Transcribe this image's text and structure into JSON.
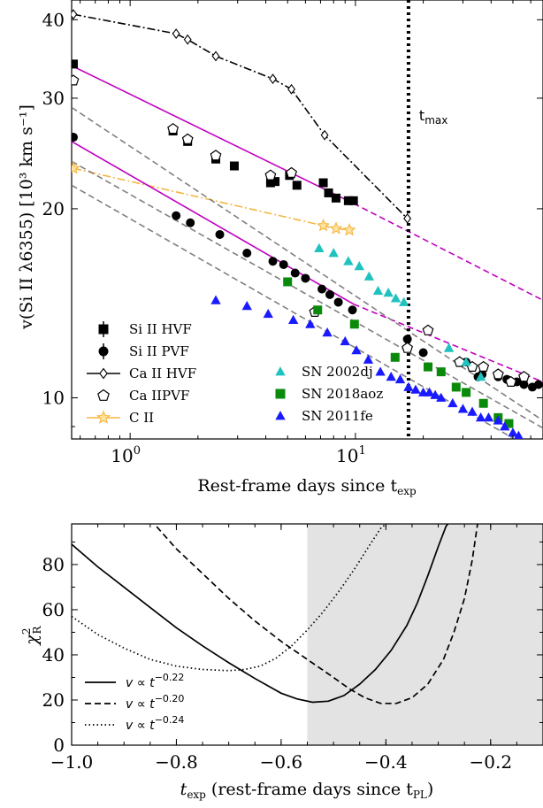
{
  "chart_data": [
    {
      "type": "scatter",
      "xscale": "log",
      "yscale": "log",
      "xlim": [
        0.55,
        68
      ],
      "ylim": [
        8.6,
        43
      ],
      "x_ticks": [
        {
          "value": 1,
          "label": "10",
          "sup": "0"
        },
        {
          "value": 10,
          "label": "10",
          "sup": "1"
        }
      ],
      "y_ticks": [
        {
          "value": 10,
          "label": "10"
        },
        {
          "value": 20,
          "label": "20"
        },
        {
          "value": 30,
          "label": "30"
        },
        {
          "value": 40,
          "label": "40"
        }
      ],
      "xlabel": "Rest-frame days since t",
      "xlabel_sub": "exp",
      "ylabel": "v(Si II λ6355) [10³ km s⁻¹]",
      "tmax": {
        "x": 17.2,
        "label": "t",
        "label_sub": "max"
      },
      "legend_placement": "lower-left",
      "series": [
        {
          "name": "Si II HVF",
          "marker": "square",
          "color": "#000000",
          "points": [
            [
              0.56,
              34.0
            ],
            [
              1.55,
              26.6
            ],
            [
              1.8,
              25.6
            ],
            [
              2.4,
              24.0
            ],
            [
              2.9,
              23.4
            ],
            [
              4.2,
              22.0
            ],
            [
              4.4,
              22.1
            ],
            [
              5.1,
              22.6
            ],
            [
              5.5,
              21.8
            ],
            [
              7.2,
              22.0
            ],
            [
              7.6,
              21.2
            ],
            [
              8.2,
              20.8
            ],
            [
              9.3,
              20.6
            ],
            [
              9.8,
              20.6
            ]
          ]
        },
        {
          "name": "Si II PVF",
          "marker": "circle",
          "color": "#000000",
          "points": [
            [
              0.56,
              26.0
            ],
            [
              1.6,
              19.5
            ],
            [
              1.85,
              19.0
            ],
            [
              2.5,
              18.2
            ],
            [
              3.3,
              17.0
            ],
            [
              4.3,
              16.5
            ],
            [
              4.8,
              16.3
            ],
            [
              5.4,
              15.8
            ],
            [
              6.0,
              15.5
            ],
            [
              7.1,
              14.9
            ],
            [
              7.7,
              14.6
            ],
            [
              8.4,
              14.2
            ],
            [
              9.7,
              13.8
            ],
            [
              17.0,
              12.4
            ],
            [
              20.0,
              11.8
            ],
            [
              31.0,
              11.4
            ],
            [
              35.0,
              10.8
            ],
            [
              36.5,
              10.9
            ],
            [
              43.0,
              10.8
            ],
            [
              47.0,
              10.7
            ],
            [
              52.0,
              10.6
            ],
            [
              56.0,
              10.5
            ],
            [
              61.0,
              10.4
            ],
            [
              65.0,
              10.5
            ]
          ]
        },
        {
          "name": "Ca II HVF",
          "marker": "diamond-open",
          "color": "#000000",
          "points": [
            [
              0.56,
              40.8
            ],
            [
              1.6,
              38.0
            ],
            [
              1.8,
              37.2
            ],
            [
              2.4,
              35.0
            ],
            [
              4.3,
              32.2
            ],
            [
              5.2,
              31.0
            ],
            [
              7.3,
              26.2
            ],
            [
              17.0,
              19.3
            ]
          ]
        },
        {
          "name": "Ca IIPVF",
          "marker": "pentagon-open",
          "color": "#000000",
          "points": [
            [
              0.56,
              32.0
            ],
            [
              1.55,
              26.8
            ],
            [
              1.8,
              25.8
            ],
            [
              2.4,
              24.3
            ],
            [
              4.2,
              22.6
            ],
            [
              5.2,
              22.8
            ],
            [
              6.6,
              13.7
            ],
            [
              17.0,
              12.0
            ],
            [
              21.0,
              12.8
            ],
            [
              29.0,
              11.4
            ],
            [
              33.0,
              11.2
            ],
            [
              37.0,
              11.2
            ],
            [
              43.0,
              10.9
            ],
            [
              49.0,
              10.6
            ],
            [
              56.0,
              10.8
            ]
          ]
        },
        {
          "name": "C II",
          "marker": "star",
          "color": "#f5b640",
          "points": [
            [
              0.56,
              23.2
            ],
            [
              7.2,
              18.8
            ],
            [
              8.2,
              18.6
            ],
            [
              9.4,
              18.5
            ]
          ]
        },
        {
          "name": "SN 2002dj",
          "marker": "triangle",
          "color": "#20c2bf",
          "points": [
            [
              6.9,
              17.3
            ],
            [
              8.0,
              17.0
            ],
            [
              9.3,
              16.5
            ],
            [
              10.4,
              16.2
            ],
            [
              11.5,
              15.6
            ],
            [
              12.6,
              14.8
            ],
            [
              14.0,
              14.7
            ],
            [
              15.1,
              14.4
            ],
            [
              16.4,
              14.2
            ],
            [
              26.0,
              12.0
            ],
            [
              31.0,
              11.4
            ],
            [
              36.0,
              10.8
            ]
          ]
        },
        {
          "name": "SN 2018aoz",
          "marker": "square",
          "color": "#0a8a0a",
          "points": [
            [
              5.0,
              15.3
            ],
            [
              6.8,
              13.8
            ],
            [
              9.9,
              13.1
            ],
            [
              15.0,
              11.6
            ],
            [
              21.0,
              11.2
            ],
            [
              24.0,
              11.0
            ],
            [
              28.0,
              10.4
            ],
            [
              31.0,
              10.2
            ],
            [
              37.0,
              9.8
            ],
            [
              43.0,
              9.3
            ],
            [
              48.0,
              9.1
            ]
          ]
        },
        {
          "name": "SN 2011fe",
          "marker": "triangle",
          "color": "#1a1aff",
          "points": [
            [
              2.4,
              14.3
            ],
            [
              3.3,
              14.0
            ],
            [
              4.1,
              13.6
            ],
            [
              5.3,
              13.3
            ],
            [
              6.3,
              13.1
            ],
            [
              7.5,
              12.7
            ],
            [
              9.0,
              12.3
            ],
            [
              10.1,
              11.9
            ],
            [
              11.4,
              11.5
            ],
            [
              12.9,
              11.0
            ],
            [
              14.4,
              10.8
            ],
            [
              15.8,
              10.7
            ],
            [
              17.2,
              10.4
            ],
            [
              18.5,
              10.3
            ],
            [
              20.0,
              10.2
            ],
            [
              21.3,
              10.2
            ],
            [
              22.6,
              10.1
            ],
            [
              24.0,
              10.0
            ],
            [
              27.0,
              9.8
            ],
            [
              30.0,
              9.6
            ],
            [
              33.0,
              9.5
            ],
            [
              36.0,
              9.3
            ],
            [
              39.0,
              9.3
            ],
            [
              43.0,
              9.2
            ],
            [
              46.0,
              9.0
            ],
            [
              50.0,
              8.8
            ],
            [
              53.0,
              8.7
            ]
          ]
        }
      ],
      "lines": [
        {
          "style": "dashdot",
          "color": "#000000",
          "points": [
            [
              0.56,
              40.8
            ],
            [
              1.6,
              38.0
            ],
            [
              1.8,
              37.2
            ],
            [
              2.4,
              35.0
            ],
            [
              4.3,
              32.2
            ],
            [
              5.2,
              31.0
            ],
            [
              7.3,
              26.2
            ],
            [
              17.0,
              19.3
            ]
          ]
        },
        {
          "style": "dashdot",
          "color": "#f5b640",
          "points": [
            [
              0.56,
              23.2
            ],
            [
              7.2,
              18.8
            ],
            [
              8.2,
              18.6
            ],
            [
              9.4,
              18.5
            ]
          ]
        },
        {
          "style": "solid",
          "color": "#c000c0",
          "points": [
            [
              0.55,
              33.8
            ],
            [
              9.8,
              20.4
            ]
          ]
        },
        {
          "style": "dashed",
          "color": "#c000c0",
          "points": [
            [
              9.8,
              20.4
            ],
            [
              68,
              14.3
            ]
          ]
        },
        {
          "style": "solid",
          "color": "#c000c0",
          "points": [
            [
              0.55,
              25.6
            ],
            [
              9.8,
              14.1
            ]
          ]
        },
        {
          "style": "dashed",
          "color": "#c000c0",
          "points": [
            [
              9.8,
              14.1
            ],
            [
              68,
              10.6
            ]
          ]
        },
        {
          "style": "dashed",
          "color": "#808080",
          "points": [
            [
              0.55,
              29.0
            ],
            [
              68,
              9.2
            ]
          ]
        },
        {
          "style": "dashed",
          "color": "#808080",
          "points": [
            [
              0.55,
              23.8
            ],
            [
              68,
              8.95
            ]
          ]
        },
        {
          "style": "dashed",
          "color": "#808080",
          "points": [
            [
              0.55,
              21.8
            ],
            [
              68,
              8.1
            ]
          ]
        }
      ],
      "legend_col1": [
        {
          "name": "Si II HVF",
          "marker": "square",
          "color": "#000000",
          "errbar": true
        },
        {
          "name": "Si II PVF",
          "marker": "circle",
          "color": "#000000",
          "errbar": true
        },
        {
          "name": "Ca II HVF",
          "marker": "diamond-open",
          "color": "#000000",
          "line": "solid"
        },
        {
          "name": "Ca IIPVF",
          "marker": "pentagon-open",
          "color": "#000000"
        },
        {
          "name": "C II",
          "marker": "star",
          "color": "#f5b640",
          "line": "solid"
        }
      ],
      "legend_col2": [
        {
          "name": "SN 2002dj",
          "marker": "triangle",
          "color": "#20c2bf"
        },
        {
          "name": "SN 2018aoz",
          "marker": "square",
          "color": "#0a8a0a"
        },
        {
          "name": "SN 2011fe",
          "marker": "triangle",
          "color": "#1a1aff"
        }
      ]
    },
    {
      "type": "line",
      "xlim": [
        -1.0,
        -0.1
      ],
      "ylim": [
        0,
        98
      ],
      "x_ticks": [
        -1.0,
        -0.8,
        -0.6,
        -0.4,
        -0.2
      ],
      "x_tick_labels": [
        "−1.0",
        "−0.8",
        "−0.6",
        "−0.4",
        "−0.2"
      ],
      "y_ticks": [
        0,
        20,
        40,
        60,
        80
      ],
      "y_tick_labels": [
        "0",
        "20",
        "40",
        "60",
        "80"
      ],
      "xlabel": "t",
      "xlabel_sub": "exp",
      "xlabel_rest": " (rest-frame days since t",
      "xlabel_sub2": "PL",
      "xlabel_end": ")",
      "ylabel": "χ",
      "ylabel_sup": "2",
      "ylabel_sub": "R",
      "shaded_region": [
        -0.55,
        -0.1
      ],
      "legend_placement": "lower-left",
      "series": [
        {
          "name": "v ∝ t",
          "exponent": "−0.22",
          "style": "solid",
          "x": [
            -1.0,
            -0.95,
            -0.9,
            -0.85,
            -0.8,
            -0.75,
            -0.7,
            -0.65,
            -0.6,
            -0.57,
            -0.54,
            -0.51,
            -0.48,
            -0.45,
            -0.42,
            -0.39,
            -0.36,
            -0.34,
            -0.32,
            -0.3,
            -0.285,
            -0.275
          ],
          "y": [
            89,
            79,
            70,
            61,
            52,
            44,
            36.5,
            29.5,
            23,
            20.5,
            19,
            19.5,
            22,
            27,
            33.5,
            42,
            53,
            63,
            75,
            88,
            97,
            100
          ]
        },
        {
          "name": "v ∝ t",
          "exponent": "−0.20",
          "style": "dashed",
          "x": [
            -0.85,
            -0.8,
            -0.75,
            -0.7,
            -0.65,
            -0.6,
            -0.55,
            -0.5,
            -0.47,
            -0.44,
            -0.41,
            -0.38,
            -0.35,
            -0.32,
            -0.29,
            -0.27,
            -0.25,
            -0.235,
            -0.225
          ],
          "y": [
            100,
            87,
            76,
            65,
            55,
            46,
            38,
            30,
            25,
            21,
            18.5,
            18.5,
            21,
            27,
            38,
            50,
            65,
            82,
            98
          ]
        },
        {
          "name": "v ∝ t",
          "exponent": "−0.24",
          "style": "dotted",
          "x": [
            -1.0,
            -0.95,
            -0.9,
            -0.85,
            -0.8,
            -0.75,
            -0.7,
            -0.67,
            -0.64,
            -0.61,
            -0.58,
            -0.55,
            -0.52,
            -0.49,
            -0.46,
            -0.43,
            -0.41,
            -0.39
          ],
          "y": [
            57,
            49,
            43,
            38,
            35,
            33.5,
            33,
            33.5,
            35,
            38.5,
            44,
            51,
            59,
            68,
            78,
            89,
            96,
            100
          ]
        }
      ]
    }
  ]
}
